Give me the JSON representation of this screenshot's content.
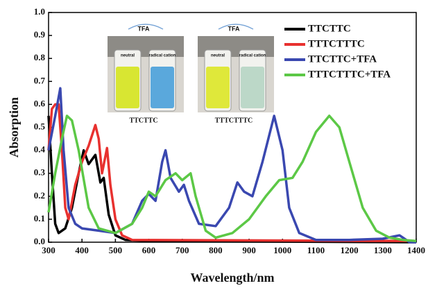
{
  "chart_data": {
    "type": "line",
    "xlabel": "Wavelength/nm",
    "ylabel": "Absorption",
    "xlim": [
      300,
      1400
    ],
    "xticks": [
      300,
      400,
      500,
      600,
      700,
      800,
      900,
      1000,
      1100,
      1200,
      1300,
      1400
    ],
    "ylim": [
      0,
      1
    ],
    "yticks": [
      {
        "value": 0,
        "label": "0.0"
      },
      0.1,
      0.2,
      0.3,
      0.4,
      0.5,
      0.6,
      0.7,
      0.8,
      0.9,
      {
        "value": 1,
        "label": "1.0"
      }
    ],
    "legend": "upper right",
    "series": [
      {
        "name": "TTCTTC",
        "color": "#000000",
        "x": [
          300,
          310,
          320,
          330,
          350,
          370,
          390,
          405,
          420,
          440,
          455,
          465,
          480,
          500,
          530,
          600,
          1400
        ],
        "values": [
          0.55,
          0.3,
          0.08,
          0.04,
          0.06,
          0.15,
          0.3,
          0.4,
          0.34,
          0.38,
          0.26,
          0.28,
          0.12,
          0.03,
          0.01,
          0.005,
          0.0
        ]
      },
      {
        "name": "TTTCTTTC",
        "color": "#e8312f",
        "x": [
          300,
          310,
          320,
          330,
          340,
          350,
          360,
          380,
          400,
          420,
          440,
          450,
          460,
          475,
          485,
          500,
          520,
          550,
          1400
        ],
        "values": [
          0.4,
          0.58,
          0.6,
          0.6,
          0.4,
          0.15,
          0.1,
          0.25,
          0.35,
          0.42,
          0.51,
          0.45,
          0.3,
          0.41,
          0.25,
          0.1,
          0.03,
          0.01,
          0.005
        ]
      },
      {
        "name": "TTCTTC+TFA",
        "color": "#3a48b0",
        "x": [
          300,
          320,
          335,
          345,
          360,
          380,
          400,
          450,
          500,
          550,
          580,
          600,
          620,
          640,
          650,
          665,
          690,
          705,
          720,
          750,
          800,
          840,
          865,
          885,
          910,
          940,
          975,
          1000,
          1020,
          1050,
          1100,
          1200,
          1300,
          1350,
          1380,
          1400
        ],
        "values": [
          0.4,
          0.55,
          0.67,
          0.4,
          0.15,
          0.08,
          0.06,
          0.05,
          0.04,
          0.08,
          0.18,
          0.21,
          0.18,
          0.35,
          0.4,
          0.28,
          0.22,
          0.25,
          0.18,
          0.08,
          0.07,
          0.15,
          0.26,
          0.22,
          0.2,
          0.35,
          0.55,
          0.4,
          0.15,
          0.04,
          0.01,
          0.01,
          0.015,
          0.03,
          0.0,
          0.0
        ]
      },
      {
        "name": "TTTCTTTC+TFA",
        "color": "#5cc846",
        "x": [
          300,
          320,
          340,
          355,
          370,
          390,
          420,
          450,
          500,
          550,
          580,
          600,
          620,
          650,
          680,
          700,
          725,
          740,
          770,
          800,
          850,
          900,
          950,
          990,
          1030,
          1060,
          1100,
          1140,
          1170,
          1200,
          1240,
          1280,
          1320,
          1360,
          1400
        ],
        "values": [
          0.13,
          0.3,
          0.45,
          0.55,
          0.53,
          0.4,
          0.15,
          0.06,
          0.04,
          0.08,
          0.15,
          0.22,
          0.2,
          0.27,
          0.3,
          0.27,
          0.3,
          0.2,
          0.05,
          0.02,
          0.04,
          0.1,
          0.2,
          0.27,
          0.28,
          0.35,
          0.48,
          0.55,
          0.5,
          0.35,
          0.15,
          0.05,
          0.02,
          0.01,
          0.005
        ]
      }
    ],
    "inset": [
      {
        "reagent": "TFA",
        "vials": [
          "neutral",
          "radical cation"
        ],
        "label": "TTCTTC"
      },
      {
        "reagent": "TFA",
        "vials": [
          "neutral",
          "radical cation"
        ],
        "label": "TTTCTTTC"
      }
    ]
  }
}
